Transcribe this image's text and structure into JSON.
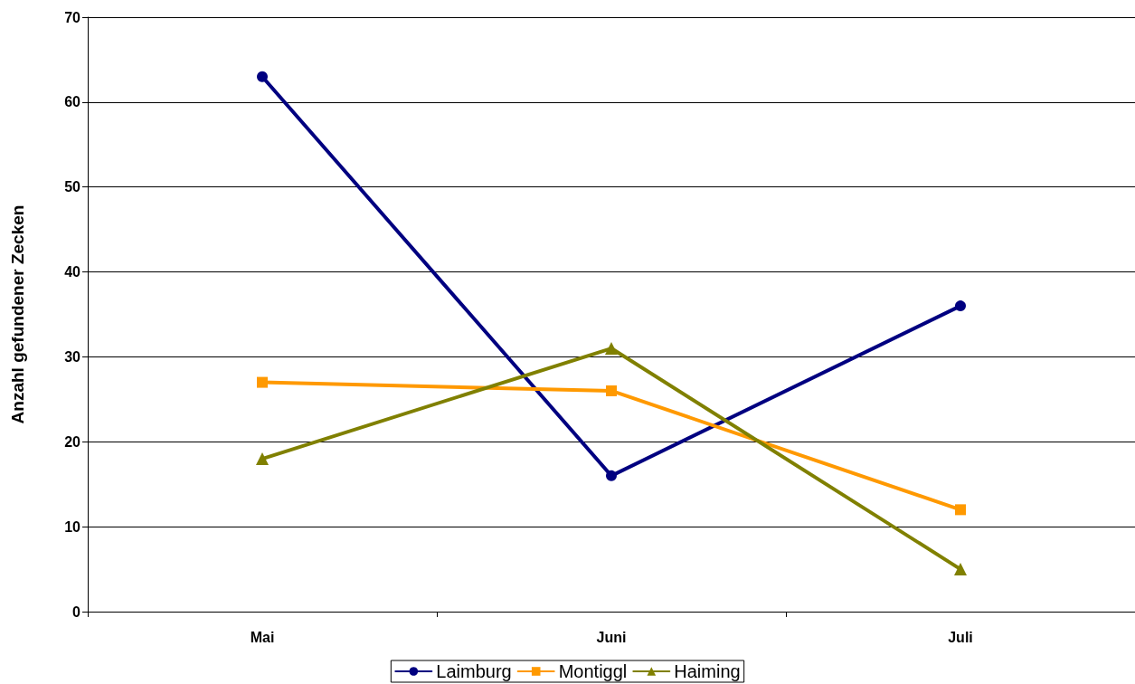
{
  "chart_data": {
    "type": "line",
    "ylabel": "Anzahl gefundener Zecken",
    "categories": [
      "Mai",
      "Juni",
      "Juli"
    ],
    "series": [
      {
        "name": "Laimburg",
        "color": "#000080",
        "marker": "circle",
        "values": [
          63,
          16,
          36
        ]
      },
      {
        "name": "Montiggl",
        "color": "#ff9900",
        "marker": "square",
        "values": [
          27,
          26,
          12
        ]
      },
      {
        "name": "Haiming",
        "color": "#808000",
        "marker": "triangle",
        "values": [
          18,
          31,
          5
        ]
      }
    ],
    "ylim": [
      0,
      70
    ],
    "yticks": [
      0,
      10,
      20,
      30,
      40,
      50,
      60,
      70
    ],
    "grid": "y",
    "legend": "bottom",
    "line_style": "solid"
  }
}
